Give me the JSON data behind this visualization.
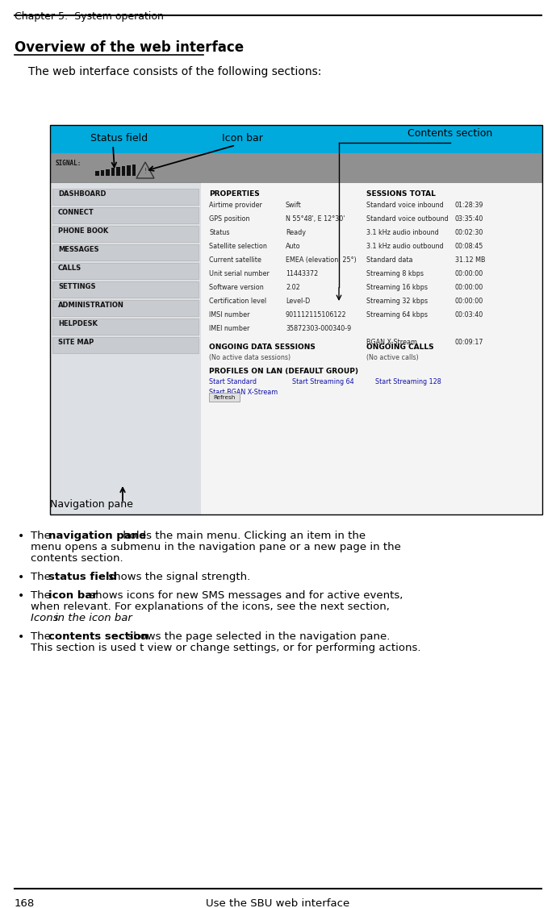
{
  "page_title": "Chapter 5:  System operation",
  "section_title": "Overview of the web interface",
  "intro_text": "The web interface consists of the following sections:",
  "label_status_field": "Status field",
  "label_icon_bar": "Icon bar",
  "label_contents_section": "Contents section",
  "label_nav_pane": "Navigation pane",
  "nav_items": [
    "DASHBOARD",
    "CONNECT",
    "PHONE BOOK",
    "MESSAGES",
    "CALLS",
    "SETTINGS",
    "ADMINISTRATION",
    "HELPDESK",
    "SITE MAP"
  ],
  "properties_label": "PROPERTIES",
  "properties_items": [
    [
      "Airtime provider",
      "Swift"
    ],
    [
      "GPS position",
      "N 55°48', E 12°30'"
    ],
    [
      "Status",
      "Ready"
    ],
    [
      "Satellite selection",
      "Auto"
    ],
    [
      "Current satellite",
      "EMEA (elevation: 25°)"
    ],
    [
      "Unit serial number",
      "11443372"
    ],
    [
      "Software version",
      "2.02"
    ],
    [
      "Certification level",
      "Level-D"
    ],
    [
      "IMSI number",
      "901112115106122"
    ],
    [
      "IMEI number",
      "35872303-000340-9"
    ]
  ],
  "sessions_label": "SESSIONS TOTAL",
  "sessions_items": [
    [
      "Standard voice inbound",
      "01:28:39"
    ],
    [
      "Standard voice outbound",
      "03:35:40"
    ],
    [
      "3.1 kHz audio inbound",
      "00:02:30"
    ],
    [
      "3.1 kHz audio outbound",
      "00:08:45"
    ],
    [
      "Standard data",
      "31.12 MB"
    ],
    [
      "Streaming 8 kbps",
      "00:00:00"
    ],
    [
      "Streaming 16 kbps",
      "00:00:00"
    ],
    [
      "Streaming 32 kbps",
      "00:00:00"
    ],
    [
      "Streaming 64 kbps",
      "00:03:40"
    ],
    [
      "",
      ""
    ],
    [
      "BGAN X-Stream",
      "00:09:17"
    ]
  ],
  "ongoing_data_label": "ONGOING DATA SESSIONS",
  "ongoing_data_text": "(No active data sessions)",
  "ongoing_calls_label": "ONGOING CALLS",
  "ongoing_calls_text": "(No active calls)",
  "profiles_label": "PROFILES ON LAN (DEFAULT GROUP)",
  "profile_links": [
    "Start Standard",
    "Start Streaming 64",
    "Start Streaming 128"
  ],
  "profile_links2": [
    "Start BGAN X-Stream"
  ],
  "refresh_btn": "Refresh",
  "bullet1_bold": "navigation pane",
  "bullet1_line1": "holds the main menu. Clicking an item in the",
  "bullet1_line2": "menu opens a submenu in the navigation pane or a new page in the",
  "bullet1_line3": "contents section.",
  "bullet2_bold": "status field",
  "bullet2_line1": "shows the signal strength.",
  "bullet3_bold": "icon bar",
  "bullet3_line1": "shows icons for new SMS messages and for active events,",
  "bullet3_line2": "when relevant. For explanations of the icons, see the next section,",
  "bullet3_italic": "Icons",
  "bullet3_italic2": "in the icon bar",
  "bullet3_post": ".",
  "bullet4_bold": "contents section",
  "bullet4_line1": "shows the page selected in the navigation pane.",
  "bullet4_line2": "This section is used t view or change settings, or for performing actions.",
  "footer_page": "168",
  "footer_text": "Use the SBU web interface",
  "bg_color": "#ffffff",
  "cyan_color": "#00aadd",
  "grey_color": "#909090",
  "nav_bg": "#dcdfe3",
  "nav_item_bg": "#c8cbd0"
}
